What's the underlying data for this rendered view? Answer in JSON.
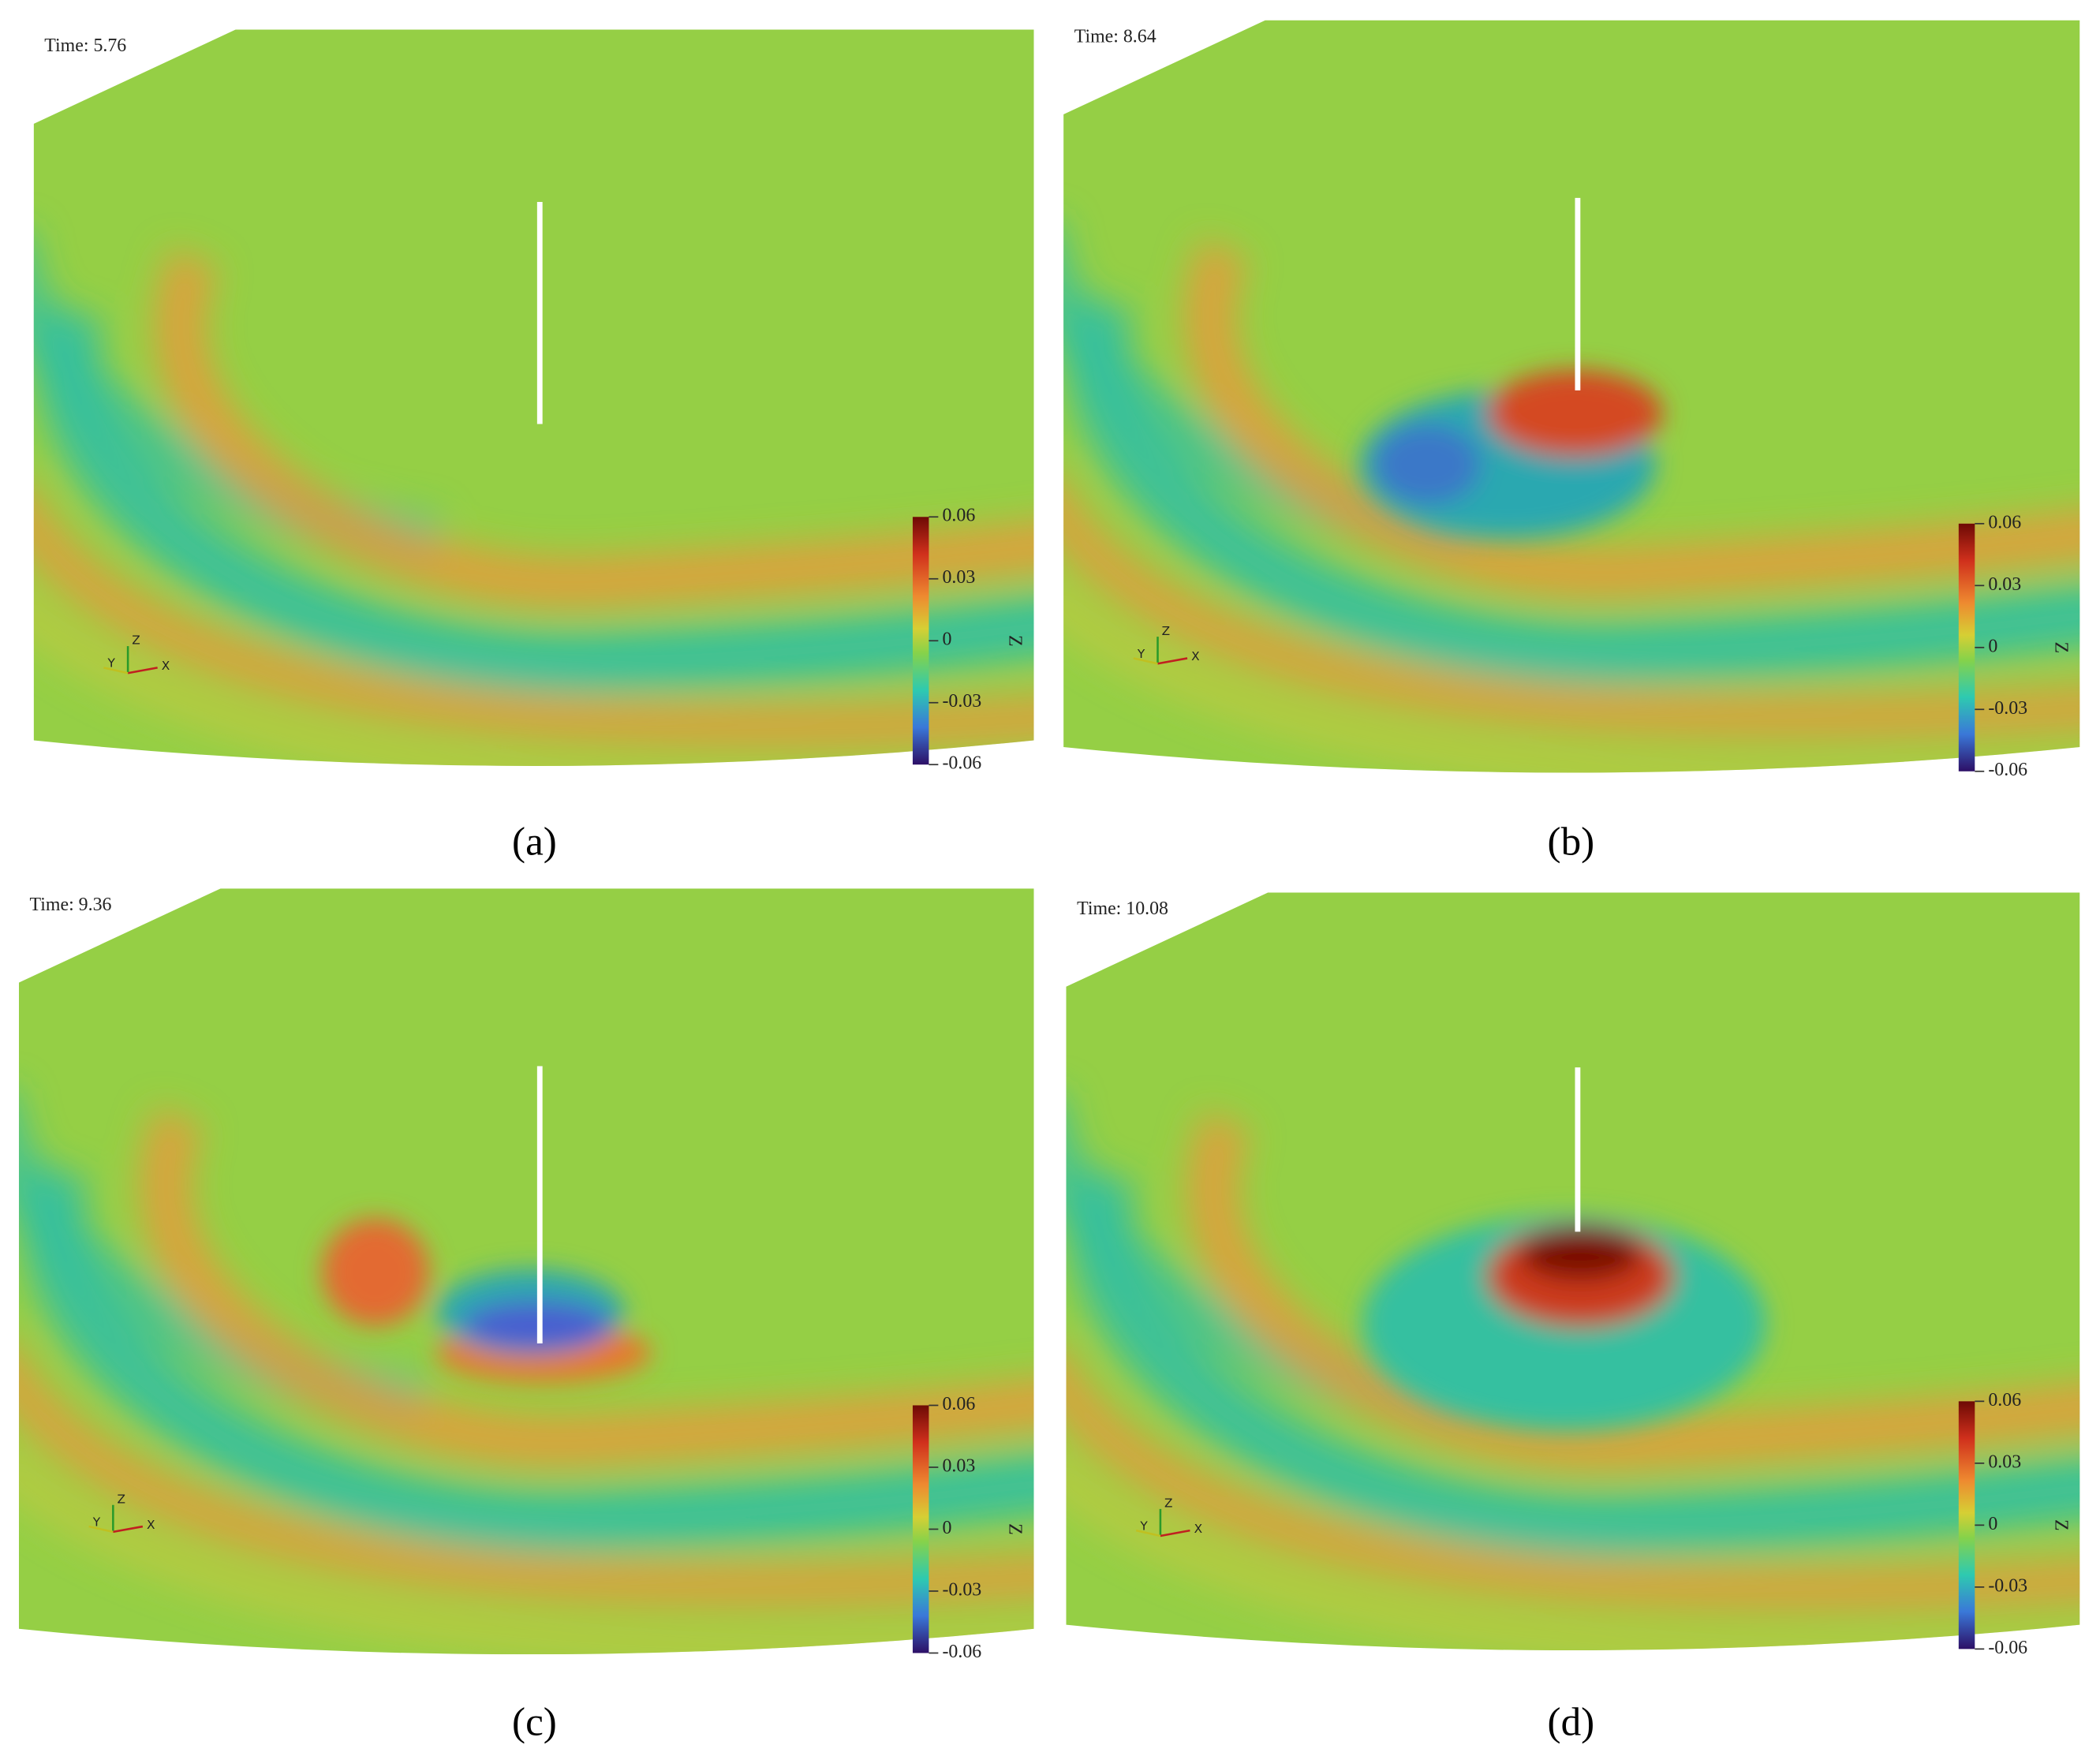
{
  "panels": [
    {
      "time_label": "Time: 5.76",
      "caption": "(a)",
      "axes_labels": {
        "x": "X",
        "y": "Y",
        "z": "Z"
      },
      "colorbar": {
        "label": "Z",
        "lim": [
          -0.06,
          0.06
        ],
        "ticks": [
          0.06,
          0.03,
          0,
          -0.03,
          -0.06
        ]
      }
    },
    {
      "time_label": "Time: 8.64",
      "caption": "(b)",
      "axes_labels": {
        "x": "X",
        "y": "Y",
        "z": "Z"
      },
      "colorbar": {
        "label": "Z",
        "lim": [
          -0.06,
          0.06
        ],
        "ticks": [
          0.06,
          0.03,
          0,
          -0.03,
          -0.06
        ]
      }
    },
    {
      "time_label": "Time: 9.36",
      "caption": "(c)",
      "axes_labels": {
        "x": "X",
        "y": "Y",
        "z": "Z"
      },
      "colorbar": {
        "label": "Z",
        "lim": [
          -0.06,
          0.06
        ],
        "ticks": [
          0.06,
          0.03,
          0,
          -0.03,
          -0.06
        ]
      }
    },
    {
      "time_label": "Time: 10.08",
      "caption": "(d)",
      "axes_labels": {
        "x": "X",
        "y": "Y",
        "z": "Z"
      },
      "colorbar": {
        "label": "Z",
        "lim": [
          -0.06,
          0.06
        ],
        "ticks": [
          0.06,
          0.03,
          0,
          -0.03,
          -0.06
        ]
      }
    }
  ]
}
